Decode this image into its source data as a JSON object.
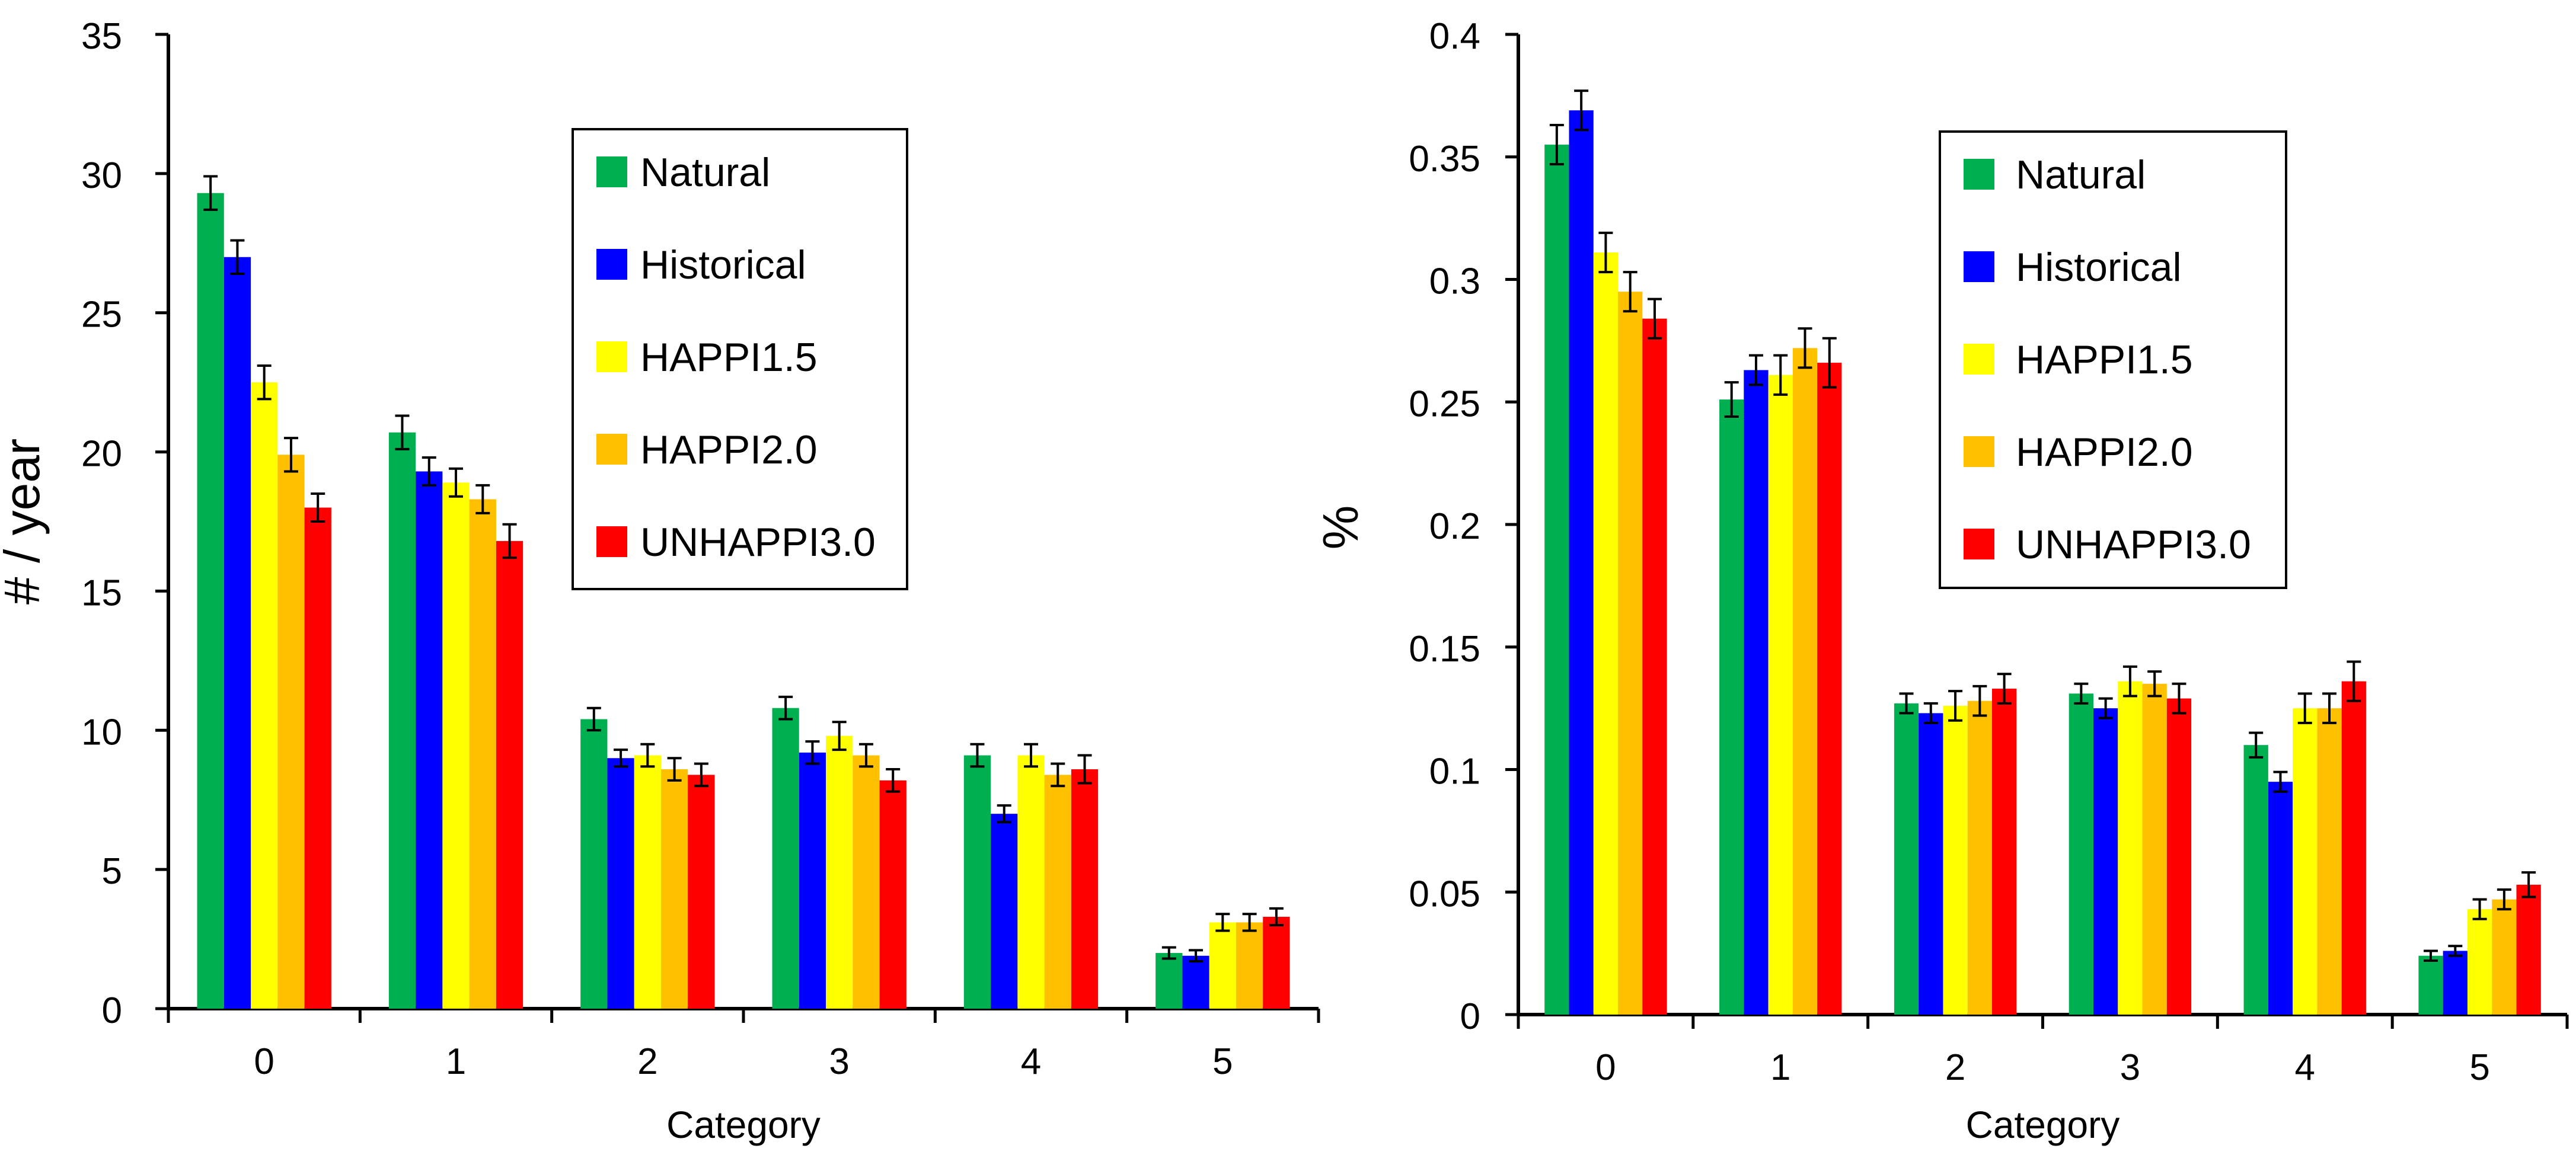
{
  "chart_data": [
    {
      "type": "bar",
      "title": "",
      "xlabel": "Category",
      "ylabel": "# / year",
      "ylim": [
        0,
        35
      ],
      "yticks": [
        0,
        5,
        10,
        15,
        20,
        25,
        30,
        35
      ],
      "ytick_labels": [
        "0",
        "5",
        "10",
        "15",
        "20",
        "25",
        "30",
        "35"
      ],
      "categories": [
        "0",
        "1",
        "2",
        "3",
        "4",
        "5"
      ],
      "legend_position": "top-right",
      "series": [
        {
          "name": "Natural",
          "color": "#00b050",
          "values": [
            29.3,
            20.7,
            10.4,
            10.8,
            9.1,
            2.0
          ],
          "errors": [
            0.6,
            0.6,
            0.4,
            0.4,
            0.4,
            0.2
          ]
        },
        {
          "name": "Historical",
          "color": "#0000ff",
          "values": [
            27.0,
            19.3,
            9.0,
            9.2,
            7.0,
            1.9
          ],
          "errors": [
            0.6,
            0.5,
            0.3,
            0.4,
            0.3,
            0.2
          ]
        },
        {
          "name": "HAPPI1.5",
          "color": "#ffff00",
          "values": [
            22.5,
            18.9,
            9.1,
            9.8,
            9.1,
            3.1
          ],
          "errors": [
            0.6,
            0.5,
            0.4,
            0.5,
            0.4,
            0.3
          ]
        },
        {
          "name": "HAPPI2.0",
          "color": "#ffc000",
          "values": [
            19.9,
            18.3,
            8.6,
            9.1,
            8.4,
            3.1
          ],
          "errors": [
            0.6,
            0.5,
            0.4,
            0.4,
            0.4,
            0.3
          ]
        },
        {
          "name": "UNHAPPI3.0",
          "color": "#ff0000",
          "values": [
            18.0,
            16.8,
            8.4,
            8.2,
            8.6,
            3.3
          ],
          "errors": [
            0.5,
            0.6,
            0.4,
            0.4,
            0.5,
            0.3
          ]
        }
      ]
    },
    {
      "type": "bar",
      "title": "",
      "xlabel": "Category",
      "ylabel": "%",
      "ylim": [
        0,
        0.4
      ],
      "yticks": [
        0,
        0.05,
        0.1,
        0.15,
        0.2,
        0.25,
        0.3,
        0.35,
        0.4
      ],
      "ytick_labels": [
        "0",
        "0.05",
        "0.1",
        "0.15",
        "0.2",
        "0.25",
        "0.3",
        "0.35",
        "0.4"
      ],
      "categories": [
        "0",
        "1",
        "2",
        "3",
        "4",
        "5"
      ],
      "legend_position": "top-right",
      "series": [
        {
          "name": "Natural",
          "color": "#00b050",
          "values": [
            0.355,
            0.251,
            0.127,
            0.131,
            0.11,
            0.024
          ],
          "errors": [
            0.008,
            0.007,
            0.004,
            0.004,
            0.005,
            0.002
          ]
        },
        {
          "name": "Historical",
          "color": "#0000ff",
          "values": [
            0.369,
            0.263,
            0.123,
            0.125,
            0.095,
            0.026
          ],
          "errors": [
            0.008,
            0.006,
            0.004,
            0.004,
            0.004,
            0.002
          ]
        },
        {
          "name": "HAPPI1.5",
          "color": "#ffff00",
          "values": [
            0.311,
            0.261,
            0.126,
            0.136,
            0.125,
            0.043
          ],
          "errors": [
            0.008,
            0.008,
            0.006,
            0.006,
            0.006,
            0.004
          ]
        },
        {
          "name": "HAPPI2.0",
          "color": "#ffc000",
          "values": [
            0.295,
            0.272,
            0.128,
            0.135,
            0.125,
            0.047
          ],
          "errors": [
            0.008,
            0.008,
            0.006,
            0.005,
            0.006,
            0.004
          ]
        },
        {
          "name": "UNHAPPI3.0",
          "color": "#ff0000",
          "values": [
            0.284,
            0.266,
            0.133,
            0.129,
            0.136,
            0.053
          ],
          "errors": [
            0.008,
            0.01,
            0.006,
            0.006,
            0.008,
            0.005
          ]
        }
      ]
    }
  ]
}
